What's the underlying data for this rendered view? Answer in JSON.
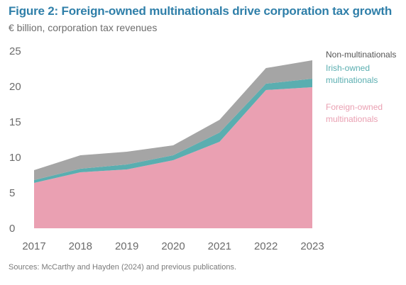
{
  "figure": {
    "title": "Figure 2: Foreign-owned multinationals drive corporation tax growth",
    "subtitle": "€ billion, corporation tax revenues",
    "source": "Sources: McCarthy and Hayden (2024) and previous publications."
  },
  "chart_data": {
    "type": "area",
    "stacked": true,
    "title": "Figure 2: Foreign-owned multinationals drive corporation tax growth",
    "subtitle": "€ billion, corporation tax revenues",
    "xlabel": "",
    "ylabel": "",
    "x": [
      "2017",
      "2018",
      "2019",
      "2020",
      "2021",
      "2022",
      "2023"
    ],
    "ylim": [
      0,
      25
    ],
    "yticks": [
      0,
      5,
      10,
      15,
      20,
      25
    ],
    "grid": false,
    "legend_placement": "right, inline labels",
    "series": [
      {
        "name": "Foreign-owned multinationals",
        "label_lines": [
          "Foreign-owned",
          "multinationals"
        ],
        "color": "#eaa0b2",
        "values": [
          6.4,
          7.9,
          8.3,
          9.6,
          12.2,
          19.5,
          19.9
        ]
      },
      {
        "name": "Irish-owned multinationals",
        "label_lines": [
          "Irish-owned",
          "multinationals"
        ],
        "color": "#5aaeb0",
        "values": [
          0.4,
          0.5,
          0.7,
          0.7,
          1.3,
          0.9,
          1.2
        ]
      },
      {
        "name": "Non-multinationals",
        "label_lines": [
          "Non-multinationals"
        ],
        "color": "#a5a5a5",
        "label_color": "#555555",
        "values": [
          1.4,
          1.9,
          1.8,
          1.4,
          1.8,
          2.2,
          2.6
        ]
      }
    ]
  }
}
